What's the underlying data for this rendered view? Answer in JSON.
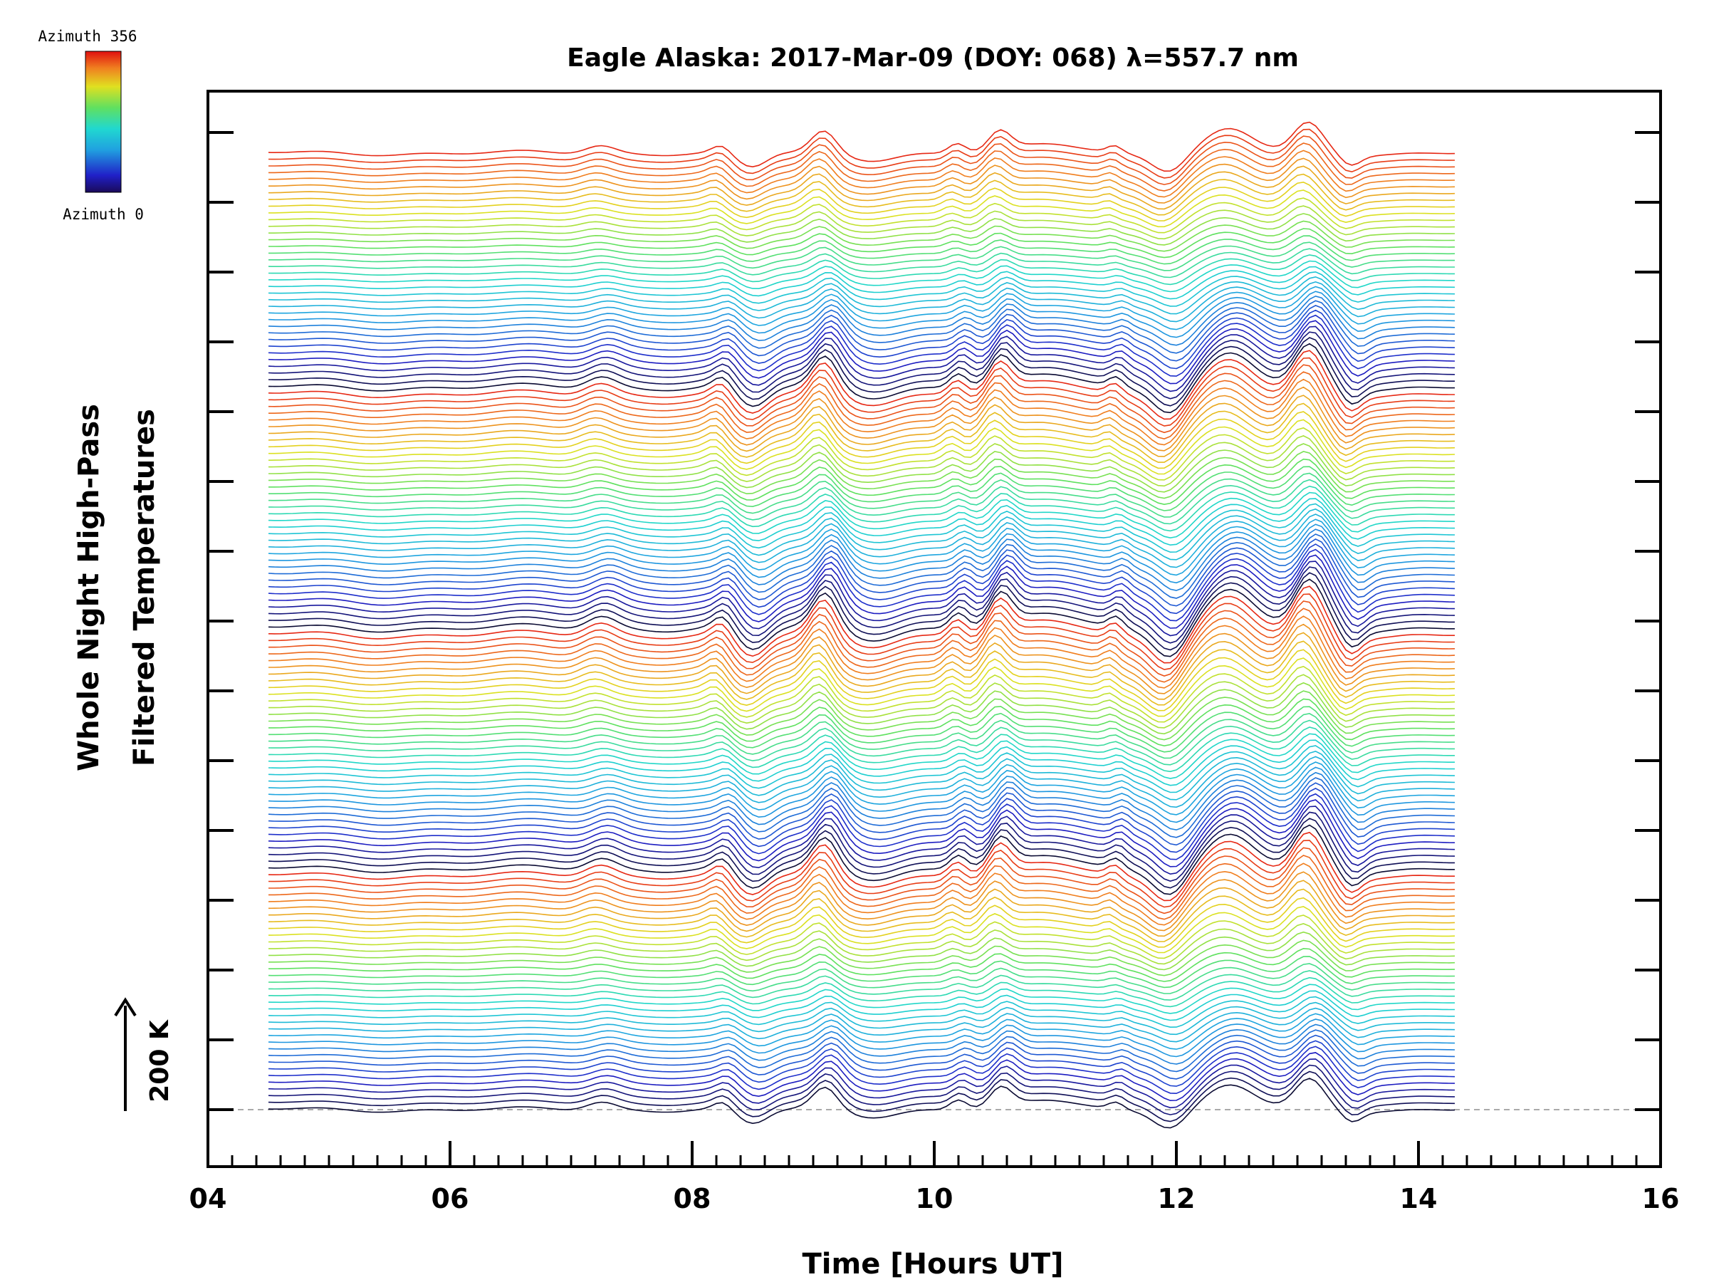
{
  "chart_data": {
    "type": "line",
    "title": "Eagle Alaska: 2017-Mar-09 (DOY: 068) λ=557.7 nm",
    "xlabel": "Time [Hours UT]",
    "ylabel_line1": "Whole Night High-Pass",
    "ylabel_line2": "Filtered Temperatures",
    "xlim": [
      4,
      16
    ],
    "x_ticks": [
      "04",
      "06",
      "08",
      "10",
      "12",
      "14",
      "16"
    ],
    "grid": false,
    "series_count": 144,
    "x_range": [
      4.5,
      14.3
    ],
    "scale_bar": {
      "label": "200 K",
      "value_K": 200
    },
    "colorbar": {
      "top_label": "Azimuth 356",
      "bottom_label": "Azimuth 0",
      "azimuth_range": [
        0,
        356
      ]
    },
    "colors": {
      "background": "#ffffff",
      "axis": "#000000",
      "baseline": "#aaaaaa"
    }
  }
}
